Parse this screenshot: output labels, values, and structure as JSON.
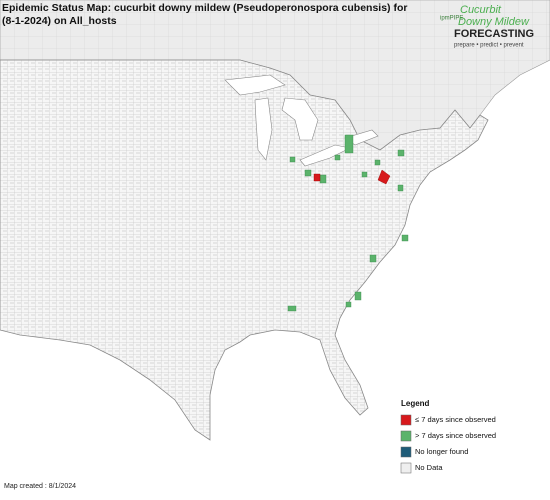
{
  "header": {
    "title_lines": [
      "Epidemic Status Map: cucurbit downy mildew (Pseudoperonospora cubensis) for",
      "(8-1-2024) on All_hosts"
    ]
  },
  "logo": {
    "brand": "ipmPIPE",
    "line1": "Cucurbit",
    "line2": "Downy Mildew",
    "line3": "FORECASTING",
    "tagline": "prepare • predict • prevent"
  },
  "legend": {
    "title": "Legend",
    "items": [
      {
        "label": "≤ 7 days since observed",
        "color": "#d7191c"
      },
      {
        "label": "> 7 days since observed",
        "color": "#5bb36b"
      },
      {
        "label": "No longer found",
        "color": "#1f5c78"
      },
      {
        "label": "No Data",
        "color": "#efefef"
      }
    ]
  },
  "footer": {
    "text": "Map created : 8/1/2024"
  }
}
